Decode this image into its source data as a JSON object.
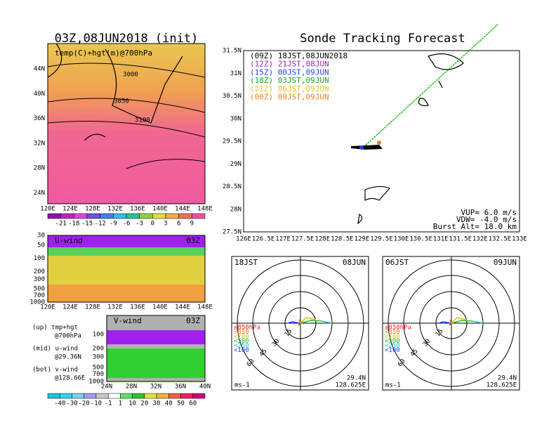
{
  "temp_panel": {
    "title": "03Z,08JUN2018 (init)",
    "label": "temp(C)+hgt(m)@700hPa",
    "lat_ticks": [
      "44N",
      "40N",
      "36N",
      "32N",
      "28N",
      "24N"
    ],
    "lon_ticks": [
      "120E",
      "124E",
      "128E",
      "132E",
      "136E",
      "140E",
      "144E",
      "148E"
    ],
    "contour_labels": [
      "3000",
      "3050",
      "3100"
    ],
    "colorbar_ticks": [
      -21,
      -18,
      -15,
      -12,
      -9,
      -6,
      -3,
      0,
      3,
      6,
      9
    ]
  },
  "u_panel": {
    "label": "U-wind",
    "time": "03Z",
    "p_ticks": [
      30,
      50,
      100,
      200,
      300,
      500,
      700,
      1000
    ],
    "lon_ticks": [
      "120E",
      "124E",
      "128E",
      "132E",
      "136E",
      "140E",
      "144E",
      "148E"
    ]
  },
  "v_panel": {
    "label": "V-wind",
    "time": "03Z",
    "p_ticks": [
      100,
      200,
      300,
      500,
      700,
      1000
    ],
    "lat_ticks": [
      "24N",
      "28N",
      "32N",
      "36N",
      "40N"
    ]
  },
  "notes": [
    "(up) tmp+hgt",
    "@700hPa",
    "(mid) u-wind",
    "@29.36N",
    "(bot) v-wind",
    "@128.66E"
  ],
  "wind_colorbar_ticks": [
    -40,
    -30,
    -20,
    -10,
    -1,
    1,
    10,
    20,
    30,
    40,
    50,
    60
  ],
  "track_panel": {
    "title": "Sonde Tracking Forecast",
    "legend": [
      {
        "text": "(09Z) 18JST,08JUN2018",
        "color": "#000000"
      },
      {
        "text": "(12Z) 21JST,08JUN",
        "color": "#a020c0"
      },
      {
        "text": "(15Z) 00JST,09JUN",
        "color": "#2040ff"
      },
      {
        "text": "(18Z) 03JST,09JUN",
        "color": "#10b010"
      },
      {
        "text": "(21Z) 06JST,09JUN",
        "color": "#f0c020"
      },
      {
        "text": "(00Z) 09JST,09JUN",
        "color": "#f08020"
      }
    ],
    "lat_ticks": [
      "31.5N",
      "31N",
      "30.5N",
      "30N",
      "29.5N",
      "29N",
      "28.5N",
      "28N",
      "27.5N"
    ],
    "lon_ticks": [
      "126E",
      "126.5E",
      "127E",
      "127.5E",
      "128E",
      "128.5E",
      "129E",
      "129.5E",
      "130E",
      "130.5E",
      "131E",
      "131.5E",
      "132E",
      "132.5E",
      "133E"
    ],
    "info": [
      "VUP= 6.0 m/s",
      "VDW= -4.0 m/s",
      "Burst Alt= 18.0 km"
    ]
  },
  "hodographs": [
    {
      "time": "18JST",
      "date": "08JUN",
      "lat": "29.4N",
      "lon": "128.625E",
      "unit": "ms-1"
    },
    {
      "time": "06JST",
      "date": "09JUN",
      "lat": "29.4N",
      "lon": "128.625E",
      "unit": "ms-1"
    }
  ],
  "ring_labels": [
    "15",
    "30",
    "45",
    "60"
  ],
  "levels": [
    {
      "text": "≥850hPa",
      "color": "#ff2020"
    },
    {
      "text": "<850",
      "color": "#f08020"
    },
    {
      "text": "<700",
      "color": "#d8c020"
    },
    {
      "text": "<500",
      "color": "#20c020"
    },
    {
      "text": "<250",
      "color": "#20c0e0"
    },
    {
      "text": "<100",
      "color": "#2040ff"
    }
  ]
}
